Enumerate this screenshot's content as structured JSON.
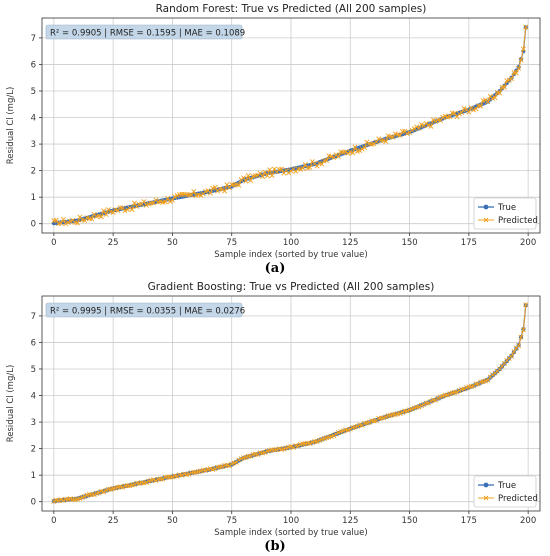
{
  "chart_data": [
    {
      "type": "line",
      "panel_label": "(a)",
      "title": "Random Forest: True vs Predicted (All 200 samples)",
      "xlabel": "Sample index (sorted by true value)",
      "ylabel": "Residual Cl (mg/L)",
      "metrics_text": "R² = 0.9905 | RMSE = 0.1595 | MAE = 0.1089",
      "xlim": [
        -5,
        205
      ],
      "ylim": [
        -0.35,
        7.75
      ],
      "xticks": [
        0,
        25,
        50,
        75,
        100,
        125,
        150,
        175,
        200
      ],
      "yticks": [
        0,
        1,
        2,
        3,
        4,
        5,
        6,
        7
      ],
      "grid": true,
      "legend_position": "lower-right",
      "anchors": [
        [
          0,
          0.02
        ],
        [
          10,
          0.12
        ],
        [
          25,
          0.5
        ],
        [
          50,
          0.95
        ],
        [
          65,
          1.2
        ],
        [
          75,
          1.4
        ],
        [
          80,
          1.65
        ],
        [
          90,
          1.9
        ],
        [
          100,
          2.05
        ],
        [
          110,
          2.25
        ],
        [
          125,
          2.75
        ],
        [
          140,
          3.2
        ],
        [
          150,
          3.45
        ],
        [
          165,
          4.0
        ],
        [
          175,
          4.3
        ],
        [
          183,
          4.6
        ],
        [
          188,
          5.0
        ],
        [
          193,
          5.5
        ],
        [
          196,
          5.9
        ],
        [
          197,
          6.2
        ],
        [
          198,
          6.5
        ],
        [
          199,
          7.4
        ]
      ],
      "noise": 0.12,
      "series": [
        {
          "name": "True",
          "color": "#3b6fb6",
          "marker": "circle"
        },
        {
          "name": "Predicted",
          "color": "#f0a020",
          "marker": "x"
        }
      ]
    },
    {
      "type": "line",
      "panel_label": "(b)",
      "title": "Gradient Boosting: True vs Predicted (All 200 samples)",
      "xlabel": "Sample index (sorted by true value)",
      "ylabel": "Residual Cl (mg/L)",
      "metrics_text": "R² = 0.9995 | RMSE = 0.0355 | MAE = 0.0276",
      "xlim": [
        -5,
        205
      ],
      "ylim": [
        -0.35,
        7.75
      ],
      "xticks": [
        0,
        25,
        50,
        75,
        100,
        125,
        150,
        175,
        200
      ],
      "yticks": [
        0,
        1,
        2,
        3,
        4,
        5,
        6,
        7
      ],
      "grid": true,
      "legend_position": "lower-right",
      "anchors": [
        [
          0,
          0.02
        ],
        [
          10,
          0.12
        ],
        [
          25,
          0.5
        ],
        [
          50,
          0.95
        ],
        [
          65,
          1.2
        ],
        [
          75,
          1.4
        ],
        [
          80,
          1.65
        ],
        [
          90,
          1.9
        ],
        [
          100,
          2.05
        ],
        [
          110,
          2.25
        ],
        [
          125,
          2.75
        ],
        [
          140,
          3.2
        ],
        [
          150,
          3.45
        ],
        [
          165,
          4.0
        ],
        [
          175,
          4.3
        ],
        [
          183,
          4.6
        ],
        [
          188,
          5.0
        ],
        [
          193,
          5.5
        ],
        [
          196,
          5.9
        ],
        [
          197,
          6.2
        ],
        [
          198,
          6.5
        ],
        [
          199,
          7.4
        ]
      ],
      "noise": 0.03,
      "series": [
        {
          "name": "True",
          "color": "#3b6fb6",
          "marker": "circle"
        },
        {
          "name": "Predicted",
          "color": "#f0a020",
          "marker": "x"
        }
      ]
    }
  ]
}
